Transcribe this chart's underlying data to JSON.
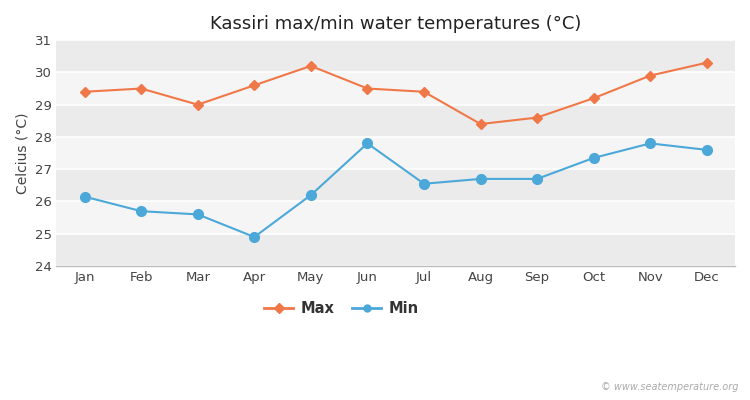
{
  "title": "Kassiri max/min water temperatures (°C)",
  "ylabel": "Celcius (°C)",
  "months": [
    "Jan",
    "Feb",
    "Mar",
    "Apr",
    "May",
    "Jun",
    "Jul",
    "Aug",
    "Sep",
    "Oct",
    "Nov",
    "Dec"
  ],
  "max_temps": [
    29.4,
    29.5,
    29.0,
    29.6,
    30.2,
    29.5,
    29.4,
    28.4,
    28.6,
    29.2,
    29.9,
    30.3
  ],
  "min_temps": [
    26.15,
    25.7,
    25.6,
    24.9,
    26.2,
    27.8,
    26.55,
    26.7,
    26.7,
    27.35,
    27.8,
    27.6
  ],
  "max_color": "#f07848",
  "min_color": "#4ba8d8",
  "fig_bg_color": "#ffffff",
  "band_colors": [
    "#ebebeb",
    "#f5f5f5"
  ],
  "ylim": [
    24,
    31
  ],
  "yticks": [
    24,
    25,
    26,
    27,
    28,
    29,
    30,
    31
  ],
  "legend_labels": [
    "Max",
    "Min"
  ],
  "watermark": "© www.seatemperature.org",
  "title_fontsize": 13,
  "axis_label_fontsize": 10,
  "tick_fontsize": 9.5,
  "legend_fontsize": 10.5
}
